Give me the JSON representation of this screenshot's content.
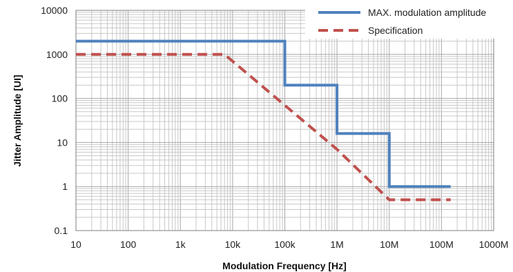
{
  "chart_data": {
    "type": "line",
    "xlabel": "Modulation  Frequency [Hz]",
    "ylabel": "Jitter Amplitude [UI]",
    "x_scale": "log",
    "y_scale": "log",
    "xlim": [
      10,
      1000000000
    ],
    "ylim": [
      0.1,
      10000
    ],
    "x_ticks": [
      {
        "value": 10,
        "label": "10"
      },
      {
        "value": 100,
        "label": "100"
      },
      {
        "value": 1000,
        "label": "1k"
      },
      {
        "value": 10000,
        "label": "10k"
      },
      {
        "value": 100000,
        "label": "100k"
      },
      {
        "value": 1000000,
        "label": "1M"
      },
      {
        "value": 10000000,
        "label": "10M"
      },
      {
        "value": 100000000,
        "label": "100M"
      },
      {
        "value": 1000000000,
        "label": "1000M"
      }
    ],
    "y_ticks": [
      {
        "value": 0.1,
        "label": "0.1"
      },
      {
        "value": 1,
        "label": "1"
      },
      {
        "value": 10,
        "label": "10"
      },
      {
        "value": 100,
        "label": "100"
      },
      {
        "value": 1000,
        "label": "1000"
      },
      {
        "value": 10000,
        "label": "10000"
      }
    ],
    "grid": true,
    "legend_position": "top-right",
    "series": [
      {
        "name": "MAX. modulation amplitude",
        "color": "#4F81BD",
        "style": "solid",
        "points": [
          [
            10,
            2000
          ],
          [
            100000,
            2000
          ],
          [
            100000,
            200
          ],
          [
            1000000,
            200
          ],
          [
            1000000,
            16
          ],
          [
            10000000,
            16
          ],
          [
            10000000,
            1
          ],
          [
            150000000,
            1
          ]
        ]
      },
      {
        "name": "Specification",
        "color": "#C0504D",
        "style": "dashed",
        "points": [
          [
            10,
            1000
          ],
          [
            7000,
            1000
          ],
          [
            1000000,
            7
          ],
          [
            10000000,
            0.5
          ],
          [
            150000000,
            0.5
          ]
        ]
      }
    ]
  }
}
